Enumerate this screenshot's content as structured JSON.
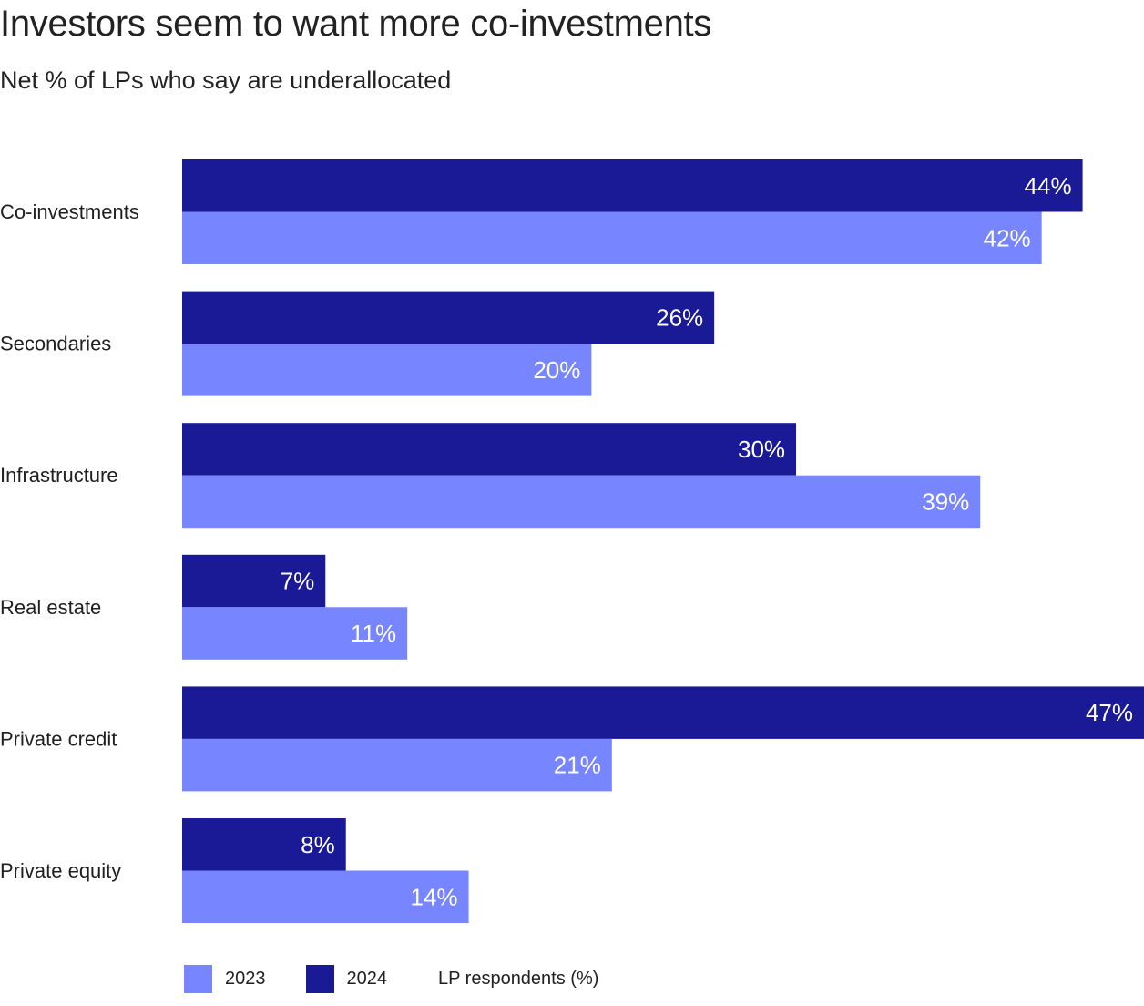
{
  "chart_data": {
    "type": "bar",
    "orientation": "horizontal",
    "title": "Investors seem to want more co-investments",
    "subtitle": "Net % of LPs who say are underallocated",
    "categories": [
      "Co-investments",
      "Secondaries",
      "Infrastructure",
      "Real estate",
      "Private credit",
      "Private equity"
    ],
    "series": [
      {
        "name": "2024",
        "color": "#1a1a96",
        "values": [
          44,
          26,
          30,
          7,
          47,
          8
        ],
        "labels": [
          "44%",
          "26%",
          "30%",
          "7%",
          "47%",
          "8%"
        ]
      },
      {
        "name": "2023",
        "color": "#7785ff",
        "values": [
          42,
          20,
          39,
          11,
          21,
          14
        ],
        "labels": [
          "42%",
          "20%",
          "39%",
          "11%",
          "21%",
          "14%"
        ]
      }
    ],
    "xlim": [
      0,
      47
    ],
    "grid": false,
    "legend": {
      "position": "bottom-left",
      "items": [
        {
          "name": "2023",
          "color": "#7785ff"
        },
        {
          "name": "2024",
          "color": "#1a1a96"
        }
      ],
      "note": "LP respondents (%)"
    }
  }
}
